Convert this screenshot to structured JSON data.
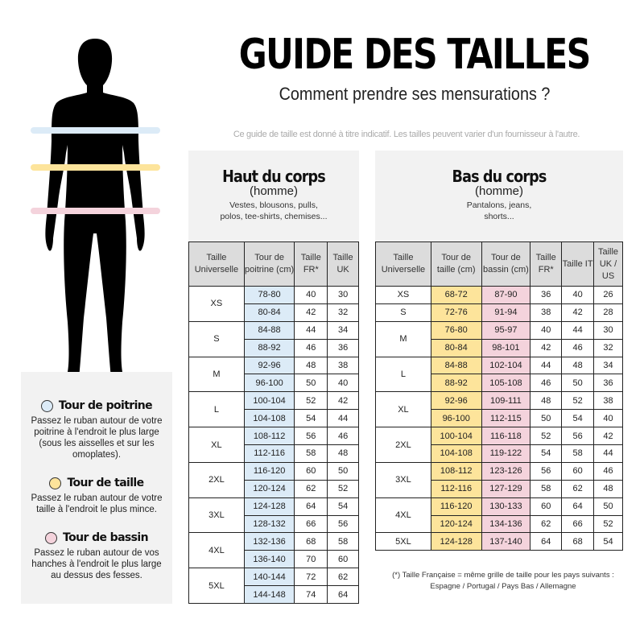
{
  "header": {
    "title": "GUIDE DES TAILLES",
    "subtitle": "Comment prendre ses mensurations ?",
    "disclaimer": "Ce guide de taille est donné à titre indicatif. Les tailles peuvent varier d'un fournisseur à l'autre."
  },
  "colors": {
    "chest": "#dcebf7",
    "waist": "#fde49b",
    "hips": "#f4d3dc"
  },
  "legend": [
    {
      "title": "Tour de poitrine",
      "color": "blue",
      "text": "Passez le ruban autour de votre poitrine à l'endroit le plus large (sous les aisselles et sur les omoplates)."
    },
    {
      "title": "Tour de taille",
      "color": "yellow",
      "text": "Passez le ruban autour de votre taille à l'endroit le plus mince."
    },
    {
      "title": "Tour de bassin",
      "color": "pink",
      "text": "Passez le ruban autour de vos hanches à l'endroit le plus large au dessus des fesses."
    }
  ],
  "top": {
    "title": "Haut du corps",
    "subtitle": "(homme)",
    "description": "Vestes, blousons, pulls, polos, tee-shirts, chemises...",
    "columns": [
      "Taille Universelle",
      "Tour de poitrine (cm)",
      "Taille FR*",
      "Taille UK"
    ],
    "column_colors": [
      "",
      "blue",
      "",
      ""
    ],
    "groups": [
      {
        "size": "XS",
        "rows": [
          [
            "78-80",
            "40",
            "30"
          ],
          [
            "80-84",
            "42",
            "32"
          ]
        ]
      },
      {
        "size": "S",
        "rows": [
          [
            "84-88",
            "44",
            "34"
          ],
          [
            "88-92",
            "46",
            "36"
          ]
        ]
      },
      {
        "size": "M",
        "rows": [
          [
            "92-96",
            "48",
            "38"
          ],
          [
            "96-100",
            "50",
            "40"
          ]
        ]
      },
      {
        "size": "L",
        "rows": [
          [
            "100-104",
            "52",
            "42"
          ],
          [
            "104-108",
            "54",
            "44"
          ]
        ]
      },
      {
        "size": "XL",
        "rows": [
          [
            "108-112",
            "56",
            "46"
          ],
          [
            "112-116",
            "58",
            "48"
          ]
        ]
      },
      {
        "size": "2XL",
        "rows": [
          [
            "116-120",
            "60",
            "50"
          ],
          [
            "120-124",
            "62",
            "52"
          ]
        ]
      },
      {
        "size": "3XL",
        "rows": [
          [
            "124-128",
            "64",
            "54"
          ],
          [
            "128-132",
            "66",
            "56"
          ]
        ]
      },
      {
        "size": "4XL",
        "rows": [
          [
            "132-136",
            "68",
            "58"
          ],
          [
            "136-140",
            "70",
            "60"
          ]
        ]
      },
      {
        "size": "5XL",
        "rows": [
          [
            "140-144",
            "72",
            "62"
          ],
          [
            "144-148",
            "74",
            "64"
          ]
        ]
      }
    ]
  },
  "bottom": {
    "title": "Bas du corps",
    "subtitle": "(homme)",
    "description": "Pantalons, jeans, shorts...",
    "columns": [
      "Taille Universelle",
      "Tour de taille (cm)",
      "Tour de bassin (cm)",
      "Taille FR*",
      "Taille IT",
      "Taille UK / US"
    ],
    "column_colors": [
      "",
      "yellow",
      "pink",
      "",
      "",
      ""
    ],
    "groups": [
      {
        "size": "XS",
        "rows": [
          [
            "68-72",
            "87-90",
            "36",
            "40",
            "26"
          ]
        ]
      },
      {
        "size": "S",
        "rows": [
          [
            "72-76",
            "91-94",
            "38",
            "42",
            "28"
          ]
        ]
      },
      {
        "size": "M",
        "rows": [
          [
            "76-80",
            "95-97",
            "40",
            "44",
            "30"
          ],
          [
            "80-84",
            "98-101",
            "42",
            "46",
            "32"
          ]
        ]
      },
      {
        "size": "L",
        "rows": [
          [
            "84-88",
            "102-104",
            "44",
            "48",
            "34"
          ],
          [
            "88-92",
            "105-108",
            "46",
            "50",
            "36"
          ]
        ]
      },
      {
        "size": "XL",
        "rows": [
          [
            "92-96",
            "109-111",
            "48",
            "52",
            "38"
          ],
          [
            "96-100",
            "112-115",
            "50",
            "54",
            "40"
          ]
        ]
      },
      {
        "size": "2XL",
        "rows": [
          [
            "100-104",
            "116-118",
            "52",
            "56",
            "42"
          ],
          [
            "104-108",
            "119-122",
            "54",
            "58",
            "44"
          ]
        ]
      },
      {
        "size": "3XL",
        "rows": [
          [
            "108-112",
            "123-126",
            "56",
            "60",
            "46"
          ],
          [
            "112-116",
            "127-129",
            "58",
            "62",
            "48"
          ]
        ]
      },
      {
        "size": "4XL",
        "rows": [
          [
            "116-120",
            "130-133",
            "60",
            "64",
            "50"
          ],
          [
            "120-124",
            "134-136",
            "62",
            "66",
            "52"
          ]
        ]
      },
      {
        "size": "5XL",
        "rows": [
          [
            "124-128",
            "137-140",
            "64",
            "68",
            "54"
          ]
        ]
      }
    ]
  },
  "footnote": {
    "line1": "(*) Taille Française = même grille de taille pour les pays suivants :",
    "line2": "Espagne / Portugal / Pays Bas / Allemagne"
  }
}
